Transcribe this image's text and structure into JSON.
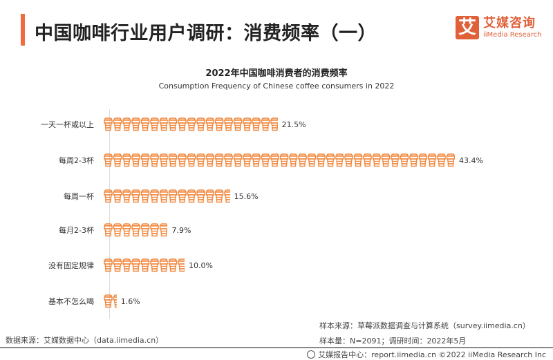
{
  "header": {
    "title": "中国咖啡行业用户调研：消费频率（一）",
    "accent_color": "#f26a3d"
  },
  "logo": {
    "mark": "艾",
    "cn": "艾媒咨询",
    "en": "iiMedia Research",
    "color": "#e0603a"
  },
  "chart_data": {
    "type": "bar",
    "title": "2022年中国咖啡消费者的消费频率",
    "subtitle": "Consumption Frequency of Chinese coffee consumers in 2022",
    "orientation": "horizontal",
    "icon": "coffee-cup-icon",
    "bar_color": "#f0883e",
    "categories": [
      "一天一杯或以上",
      "每周2-3杯",
      "每周一杯",
      "每月2-3杯",
      "没有固定规律",
      "基本不怎么喝"
    ],
    "values": [
      21.5,
      43.4,
      15.6,
      7.9,
      10.0,
      1.6
    ],
    "value_labels": [
      "21.5%",
      "43.4%",
      "15.6%",
      "7.9%",
      "10.0%",
      "1.6%"
    ],
    "unit": "%",
    "xlabel": "",
    "ylabel": "",
    "grid": false,
    "legend": false
  },
  "footer": {
    "data_source": "数据来源：艾媒数据中心（data.iimedia.cn）",
    "sample_source": "样本来源：草莓派数据调查与计算系统（survey.iimedia.cn）",
    "sample_size": "样本量：N=2091；调研时间：2022年5月",
    "report_center": "艾媒报告中心：report.iimedia.cn   ©2022  iiMedia Research  Inc"
  }
}
